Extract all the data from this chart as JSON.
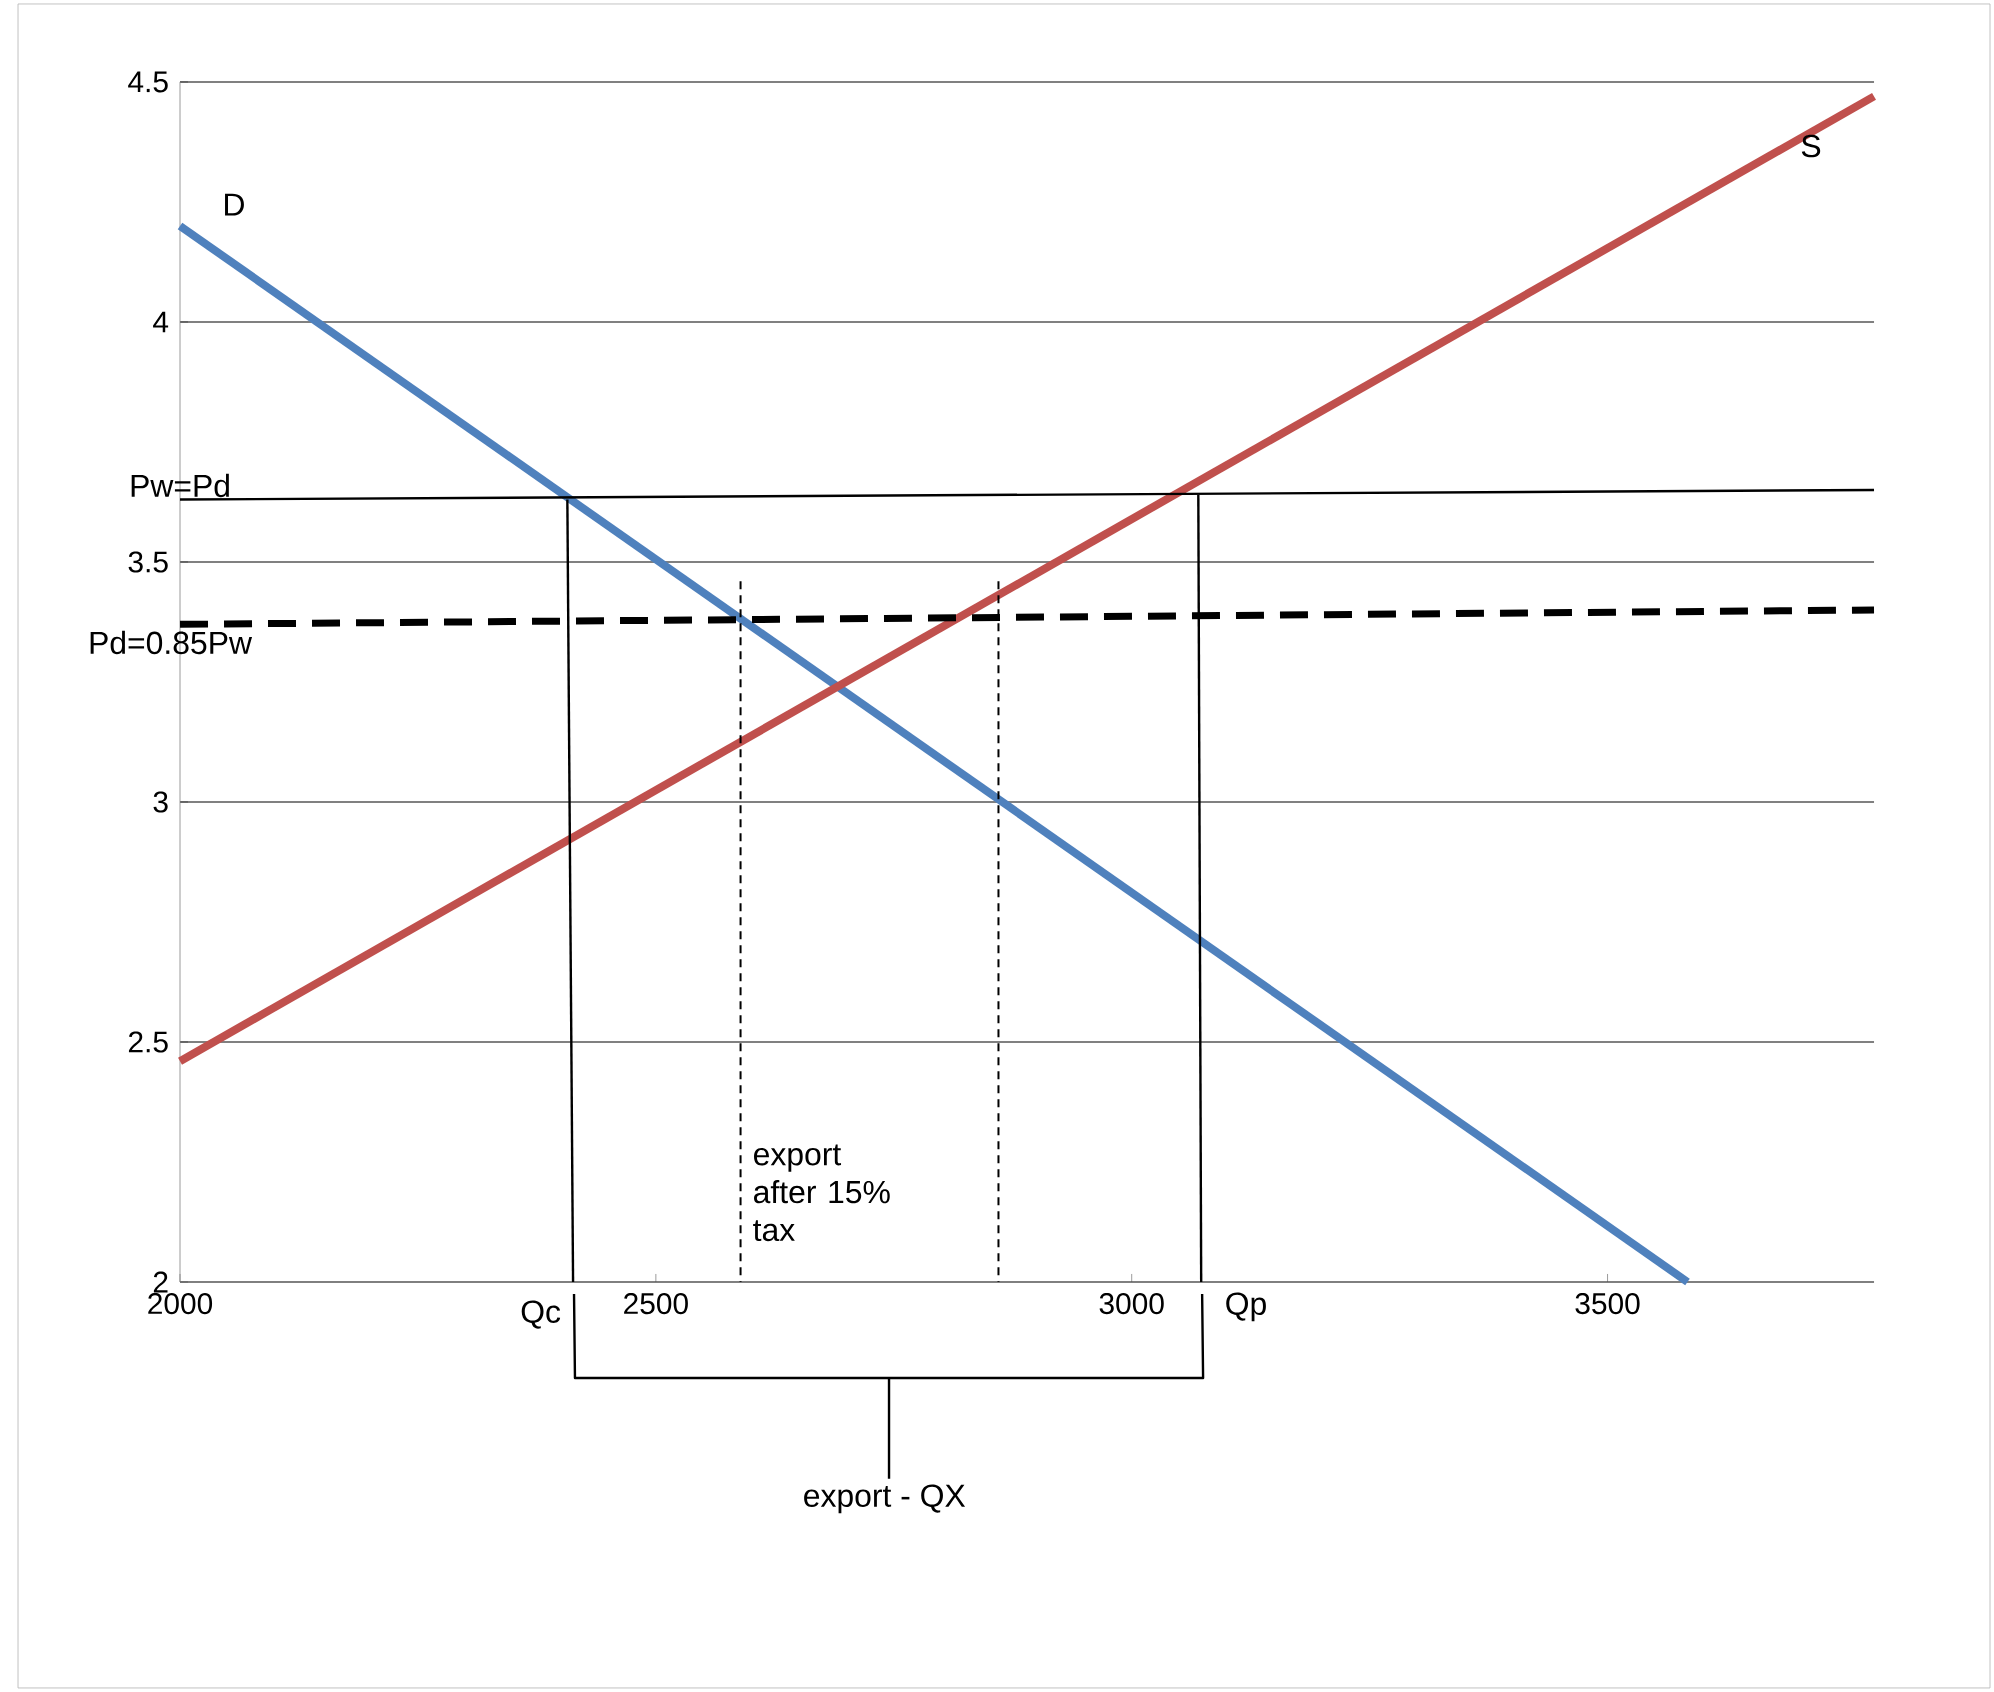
{
  "chart_data": {
    "type": "line",
    "xlim": [
      2000,
      3780
    ],
    "ylim": [
      2,
      4.5
    ],
    "xticks": [
      2000,
      2500,
      3000,
      3500
    ],
    "yticks": [
      2,
      2.5,
      3,
      3.5,
      4,
      4.5
    ],
    "grid": "y",
    "series": [
      {
        "name": "D",
        "color": "#4f81bd",
        "x": [
          2000,
          3584
        ],
        "values": [
          4.2,
          2
        ]
      },
      {
        "name": "S",
        "color": "#c0504d",
        "x": [
          2000,
          3780
        ],
        "values": [
          2.46,
          4.47
        ]
      },
      {
        "name": "Pw=Pd",
        "color": "#000000",
        "x": [
          2000,
          3780
        ],
        "values": [
          3.63,
          3.65
        ]
      },
      {
        "name": "Pd=0.85Pw",
        "color": "#000000",
        "line_style": "dashed",
        "x": [
          2000,
          3780
        ],
        "values": [
          3.37,
          3.4
        ]
      },
      {
        "color": "#000000",
        "x": [
          2407,
          2413
        ],
        "values": [
          3.63,
          2
        ]
      },
      {
        "color": "#000000",
        "x": [
          3070,
          3073
        ],
        "values": [
          3.64,
          2
        ]
      },
      {
        "color": "#000000",
        "line_style": "dashed",
        "x": [
          2589,
          2589
        ],
        "values": [
          3.46,
          2
        ]
      },
      {
        "color": "#000000",
        "line_style": "dashed",
        "x": [
          2860,
          2860
        ],
        "values": [
          3.46,
          2
        ]
      }
    ],
    "annotations": [
      "export after 15% tax",
      "Qc",
      "Qp",
      "export - QX"
    ]
  }
}
